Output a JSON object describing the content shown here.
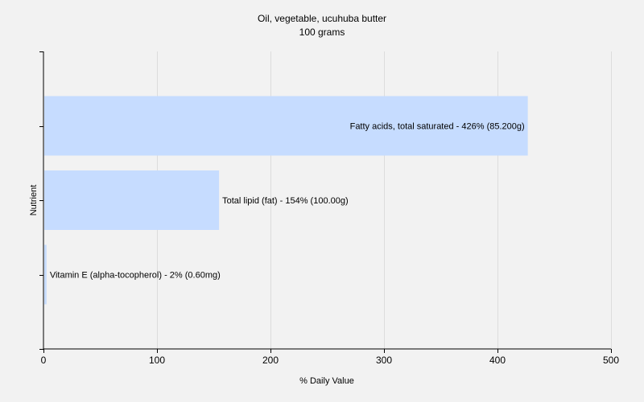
{
  "chart_data": {
    "type": "bar",
    "orientation": "horizontal",
    "title": "Oil, vegetable, ucuhuba butter",
    "subtitle": "100 grams",
    "xlabel": "% Daily Value",
    "ylabel": "Nutrient",
    "xlim": [
      0,
      500
    ],
    "xticks": [
      0,
      100,
      200,
      300,
      400,
      500
    ],
    "grid": true,
    "bar_color": "#c6dcff",
    "categories": [
      "Fatty acids, total saturated",
      "Total lipid (fat)",
      "Vitamin E (alpha-tocopherol)"
    ],
    "values": [
      426,
      154,
      2
    ],
    "data_labels": [
      "Fatty acids, total saturated - 426% (85.200g)",
      "Total lipid (fat) - 154% (100.00g)",
      "Vitamin E (alpha-tocopherol) - 2% (0.60mg)"
    ]
  }
}
